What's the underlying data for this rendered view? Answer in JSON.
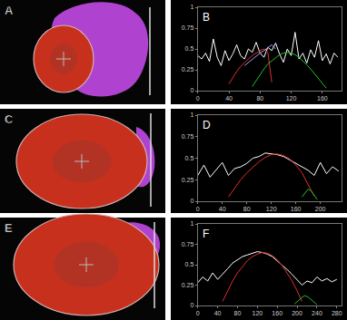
{
  "images": [
    {
      "label": "A"
    },
    {
      "label": "C"
    },
    {
      "label": "E"
    }
  ],
  "chart_data": [
    {
      "type": "line",
      "title": "B",
      "xlim": [
        0,
        185
      ],
      "ylim": [
        0,
        1
      ],
      "xticks": [
        0,
        40,
        80,
        120,
        160
      ],
      "yticks": [
        0,
        0.25,
        0.5,
        0.75,
        1
      ],
      "series": [
        {
          "color": "#ffffff",
          "x": [
            0,
            5,
            10,
            15,
            20,
            25,
            30,
            35,
            40,
            45,
            50,
            55,
            60,
            65,
            70,
            75,
            80,
            85,
            90,
            95,
            100,
            105,
            110,
            115,
            120,
            125,
            130,
            135,
            140,
            145,
            150,
            155,
            160,
            165,
            170,
            175,
            180
          ],
          "values": [
            0.42,
            0.38,
            0.45,
            0.35,
            0.62,
            0.4,
            0.3,
            0.48,
            0.36,
            0.44,
            0.55,
            0.42,
            0.38,
            0.5,
            0.46,
            0.58,
            0.45,
            0.4,
            0.52,
            0.48,
            0.57,
            0.44,
            0.34,
            0.5,
            0.42,
            0.7,
            0.38,
            0.45,
            0.33,
            0.49,
            0.4,
            0.6,
            0.36,
            0.44,
            0.32,
            0.45,
            0.4
          ]
        },
        {
          "color": "#e0302a",
          "x": [
            40,
            45,
            50,
            55,
            60,
            65,
            70,
            75,
            80,
            85,
            90,
            95
          ],
          "values": [
            0.08,
            0.16,
            0.23,
            0.29,
            0.34,
            0.38,
            0.42,
            0.45,
            0.48,
            0.5,
            0.46,
            0.1
          ]
        },
        {
          "color": "#a0a0ff",
          "x": [
            60,
            65,
            70,
            75,
            80,
            85,
            90,
            95,
            100
          ],
          "values": [
            0.3,
            0.34,
            0.38,
            0.42,
            0.45,
            0.48,
            0.52,
            0.55,
            0.5
          ]
        },
        {
          "color": "#22c02a",
          "x": [
            70,
            75,
            80,
            85,
            90,
            95,
            100,
            105,
            110,
            115,
            120,
            125,
            130,
            135,
            140,
            145,
            150,
            155,
            160,
            165
          ],
          "values": [
            0.05,
            0.12,
            0.2,
            0.26,
            0.32,
            0.36,
            0.4,
            0.43,
            0.45,
            0.46,
            0.45,
            0.43,
            0.4,
            0.36,
            0.31,
            0.26,
            0.2,
            0.14,
            0.08,
            0.03
          ]
        }
      ]
    },
    {
      "type": "line",
      "title": "D",
      "xlim": [
        0,
        235
      ],
      "ylim": [
        0,
        1
      ],
      "xticks": [
        0,
        40,
        80,
        120,
        160,
        200
      ],
      "yticks": [
        0,
        0.25,
        0.5,
        0.75,
        1
      ],
      "series": [
        {
          "color": "#ffffff",
          "x": [
            0,
            10,
            20,
            30,
            40,
            50,
            60,
            70,
            80,
            90,
            100,
            110,
            120,
            130,
            140,
            150,
            160,
            170,
            180,
            190,
            200,
            210,
            220,
            230
          ],
          "values": [
            0.3,
            0.42,
            0.28,
            0.36,
            0.45,
            0.3,
            0.38,
            0.4,
            0.44,
            0.5,
            0.52,
            0.56,
            0.55,
            0.54,
            0.52,
            0.48,
            0.44,
            0.4,
            0.36,
            0.3,
            0.45,
            0.32,
            0.4,
            0.35
          ]
        },
        {
          "color": "#e0302a",
          "x": [
            50,
            60,
            70,
            80,
            90,
            100,
            110,
            120,
            130,
            140,
            150,
            160,
            170,
            180,
            190
          ],
          "values": [
            0.05,
            0.15,
            0.25,
            0.33,
            0.4,
            0.46,
            0.51,
            0.54,
            0.55,
            0.53,
            0.49,
            0.42,
            0.33,
            0.2,
            0.06
          ]
        },
        {
          "color": "#22c02a",
          "x": [
            170,
            175,
            180,
            185,
            190,
            195
          ],
          "values": [
            0.05,
            0.1,
            0.14,
            0.12,
            0.07,
            0.02
          ]
        }
      ]
    },
    {
      "type": "line",
      "title": "F",
      "xlim": [
        0,
        290
      ],
      "ylim": [
        0,
        1
      ],
      "xticks": [
        0,
        40,
        80,
        120,
        160,
        200,
        240,
        280
      ],
      "yticks": [
        0,
        0.25,
        0.5,
        0.75,
        1
      ],
      "series": [
        {
          "color": "#ffffff",
          "x": [
            0,
            10,
            20,
            30,
            40,
            50,
            60,
            70,
            80,
            90,
            100,
            110,
            120,
            130,
            140,
            150,
            160,
            170,
            180,
            190,
            200,
            210,
            220,
            230,
            240,
            250,
            260,
            270,
            280
          ],
          "values": [
            0.28,
            0.35,
            0.3,
            0.4,
            0.32,
            0.38,
            0.45,
            0.52,
            0.56,
            0.6,
            0.62,
            0.64,
            0.66,
            0.65,
            0.63,
            0.6,
            0.55,
            0.5,
            0.44,
            0.38,
            0.32,
            0.25,
            0.3,
            0.28,
            0.35,
            0.3,
            0.33,
            0.29,
            0.32
          ]
        },
        {
          "color": "#e0302a",
          "x": [
            50,
            60,
            70,
            80,
            90,
            100,
            110,
            120,
            130,
            140,
            150,
            160,
            170,
            180,
            190,
            200,
            210
          ],
          "values": [
            0.05,
            0.18,
            0.3,
            0.4,
            0.48,
            0.55,
            0.6,
            0.63,
            0.65,
            0.64,
            0.61,
            0.56,
            0.49,
            0.4,
            0.3,
            0.18,
            0.05
          ]
        },
        {
          "color": "#22c02a",
          "x": [
            195,
            200,
            205,
            210,
            215,
            220,
            225,
            230,
            235,
            240
          ],
          "values": [
            0.02,
            0.05,
            0.08,
            0.1,
            0.12,
            0.11,
            0.09,
            0.06,
            0.03,
            0.01
          ]
        }
      ]
    }
  ]
}
